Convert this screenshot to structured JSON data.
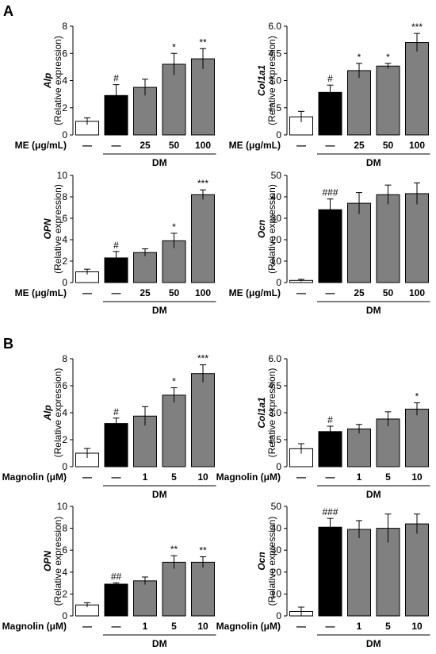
{
  "panel_labels": [
    "A",
    "B"
  ],
  "ylabel_suffix": "(Relative expression)",
  "group_label": "DM",
  "chart_data": [
    {
      "type": "bar",
      "gene": "Alp",
      "ylim": [
        0,
        8
      ],
      "yticks": [
        0,
        2,
        4,
        6,
        8
      ],
      "treatment_label": "ME (μg/mL)",
      "categories": [
        "—",
        "—",
        "25",
        "50",
        "100"
      ],
      "values": [
        1.0,
        2.9,
        3.5,
        5.2,
        5.6
      ],
      "errors": [
        0.25,
        0.8,
        0.6,
        0.8,
        0.75
      ],
      "sig": [
        "",
        "#",
        "",
        "*",
        "**"
      ],
      "colors": [
        "#ffffff",
        "#000000",
        "#808080",
        "#808080",
        "#808080"
      ]
    },
    {
      "type": "bar",
      "gene": "Col1a1",
      "ylim": [
        0,
        6
      ],
      "yticks": [
        "0",
        "1.5",
        "3.0",
        "4.5",
        "6.0"
      ],
      "treatment_label": "ME (μg/mL)",
      "categories": [
        "—",
        "—",
        "25",
        "50",
        "100"
      ],
      "values": [
        1.0,
        2.35,
        3.55,
        3.8,
        5.1
      ],
      "errors": [
        0.3,
        0.4,
        0.4,
        0.15,
        0.5
      ],
      "sig": [
        "",
        "#",
        "*",
        "*",
        "***"
      ],
      "colors": [
        "#ffffff",
        "#000000",
        "#808080",
        "#808080",
        "#808080"
      ]
    },
    {
      "type": "bar",
      "gene": "OPN",
      "ylim": [
        0,
        10
      ],
      "yticks": [
        0,
        2,
        4,
        6,
        8,
        10
      ],
      "treatment_label": "ME (μg/mL)",
      "categories": [
        "—",
        "—",
        "25",
        "50",
        "100"
      ],
      "values": [
        1.0,
        2.3,
        2.8,
        3.9,
        8.2
      ],
      "errors": [
        0.25,
        0.6,
        0.35,
        0.7,
        0.45
      ],
      "sig": [
        "",
        "#",
        "",
        "*",
        "***"
      ],
      "colors": [
        "#ffffff",
        "#000000",
        "#808080",
        "#808080",
        "#808080"
      ]
    },
    {
      "type": "bar",
      "gene": "Ocn",
      "ylim": [
        0,
        50
      ],
      "yticks": [
        0,
        10,
        20,
        30,
        40,
        50
      ],
      "treatment_label": "ME (μg/mL)",
      "categories": [
        "—",
        "—",
        "25",
        "50",
        "100"
      ],
      "values": [
        1.0,
        34.0,
        37.0,
        41.0,
        41.5
      ],
      "errors": [
        0.5,
        5.0,
        5.0,
        4.5,
        5.0
      ],
      "sig": [
        "",
        "###",
        "",
        "",
        ""
      ],
      "colors": [
        "#ffffff",
        "#000000",
        "#808080",
        "#808080",
        "#808080"
      ]
    },
    {
      "type": "bar",
      "gene": "Alp",
      "ylim": [
        0,
        8
      ],
      "yticks": [
        0,
        2,
        4,
        6,
        8
      ],
      "treatment_label": "Magnolin (μM)",
      "categories": [
        "—",
        "—",
        "1",
        "5",
        "10"
      ],
      "values": [
        1.0,
        3.2,
        3.75,
        5.3,
        6.9
      ],
      "errors": [
        0.35,
        0.4,
        0.7,
        0.55,
        0.65
      ],
      "sig": [
        "",
        "#",
        "",
        "*",
        "***"
      ],
      "colors": [
        "#ffffff",
        "#000000",
        "#808080",
        "#808080",
        "#808080"
      ]
    },
    {
      "type": "bar",
      "gene": "Col1a1",
      "ylim": [
        0,
        6
      ],
      "yticks": [
        "0",
        "1.5",
        "3.0",
        "4.5",
        "6.0"
      ],
      "treatment_label": "Magnolin (μM)",
      "categories": [
        "—",
        "—",
        "1",
        "5",
        "10"
      ],
      "values": [
        1.0,
        1.95,
        2.1,
        2.65,
        3.2
      ],
      "errors": [
        0.28,
        0.3,
        0.25,
        0.4,
        0.35
      ],
      "sig": [
        "",
        "#",
        "",
        "",
        "*"
      ],
      "colors": [
        "#ffffff",
        "#000000",
        "#808080",
        "#808080",
        "#808080"
      ]
    },
    {
      "type": "bar",
      "gene": "OPN",
      "ylim": [
        0,
        10
      ],
      "yticks": [
        0,
        2,
        4,
        6,
        8,
        10
      ],
      "treatment_label": "Magnolin (μM)",
      "categories": [
        "—",
        "—",
        "1",
        "5",
        "10"
      ],
      "values": [
        1.0,
        2.9,
        3.2,
        4.9,
        4.9
      ],
      "errors": [
        0.2,
        0.12,
        0.35,
        0.6,
        0.5
      ],
      "sig": [
        "",
        "##",
        "",
        "**",
        "**"
      ],
      "colors": [
        "#ffffff",
        "#000000",
        "#808080",
        "#808080",
        "#808080"
      ]
    },
    {
      "type": "bar",
      "gene": "Ocn",
      "ylim": [
        0,
        50
      ],
      "yticks": [
        0,
        10,
        20,
        30,
        40,
        50
      ],
      "treatment_label": "Magnolin (μM)",
      "categories": [
        "—",
        "—",
        "1",
        "5",
        "10"
      ],
      "values": [
        2.0,
        40.5,
        39.5,
        40.0,
        42.0
      ],
      "errors": [
        2.0,
        4.0,
        4.0,
        6.5,
        4.5
      ],
      "sig": [
        "",
        "###",
        "",
        "",
        ""
      ],
      "colors": [
        "#ffffff",
        "#000000",
        "#808080",
        "#808080",
        "#808080"
      ]
    }
  ]
}
